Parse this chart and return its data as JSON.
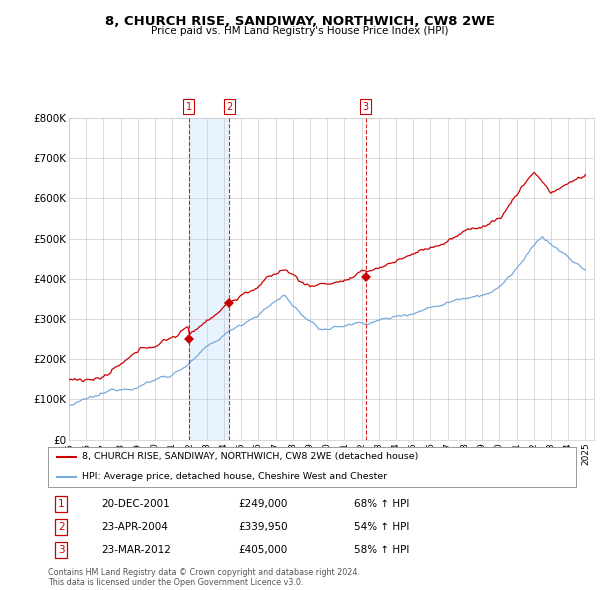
{
  "title": "8, CHURCH RISE, SANDIWAY, NORTHWICH, CW8 2WE",
  "subtitle": "Price paid vs. HM Land Registry's House Price Index (HPI)",
  "ylim": [
    0,
    800000
  ],
  "yticks": [
    0,
    100000,
    200000,
    300000,
    400000,
    500000,
    600000,
    700000,
    800000
  ],
  "ytick_labels": [
    "£0",
    "£100K",
    "£200K",
    "£300K",
    "£400K",
    "£500K",
    "£600K",
    "£700K",
    "£800K"
  ],
  "red_line_label": "8, CHURCH RISE, SANDIWAY, NORTHWICH, CW8 2WE (detached house)",
  "blue_line_label": "HPI: Average price, detached house, Cheshire West and Chester",
  "sale_dates": [
    "20-DEC-2001",
    "23-APR-2004",
    "23-MAR-2012"
  ],
  "sale_prices": [
    249000,
    339950,
    405000
  ],
  "sale_price_labels": [
    "£249,000",
    "£339,950",
    "£405,000"
  ],
  "sale_hpi_pct": [
    "68% ↑ HPI",
    "54% ↑ HPI",
    "58% ↑ HPI"
  ],
  "sale_years": [
    2001.97,
    2004.31,
    2012.23
  ],
  "footnote": "Contains HM Land Registry data © Crown copyright and database right 2024.\nThis data is licensed under the Open Government Licence v3.0.",
  "red_color": "#cc0000",
  "blue_color": "#7aaadd",
  "shade_color": "#ddeeff",
  "dashed_color": "#cc0000",
  "background_color": "#ffffff",
  "grid_color": "#cccccc",
  "chart_bg": "#f0f4ff"
}
